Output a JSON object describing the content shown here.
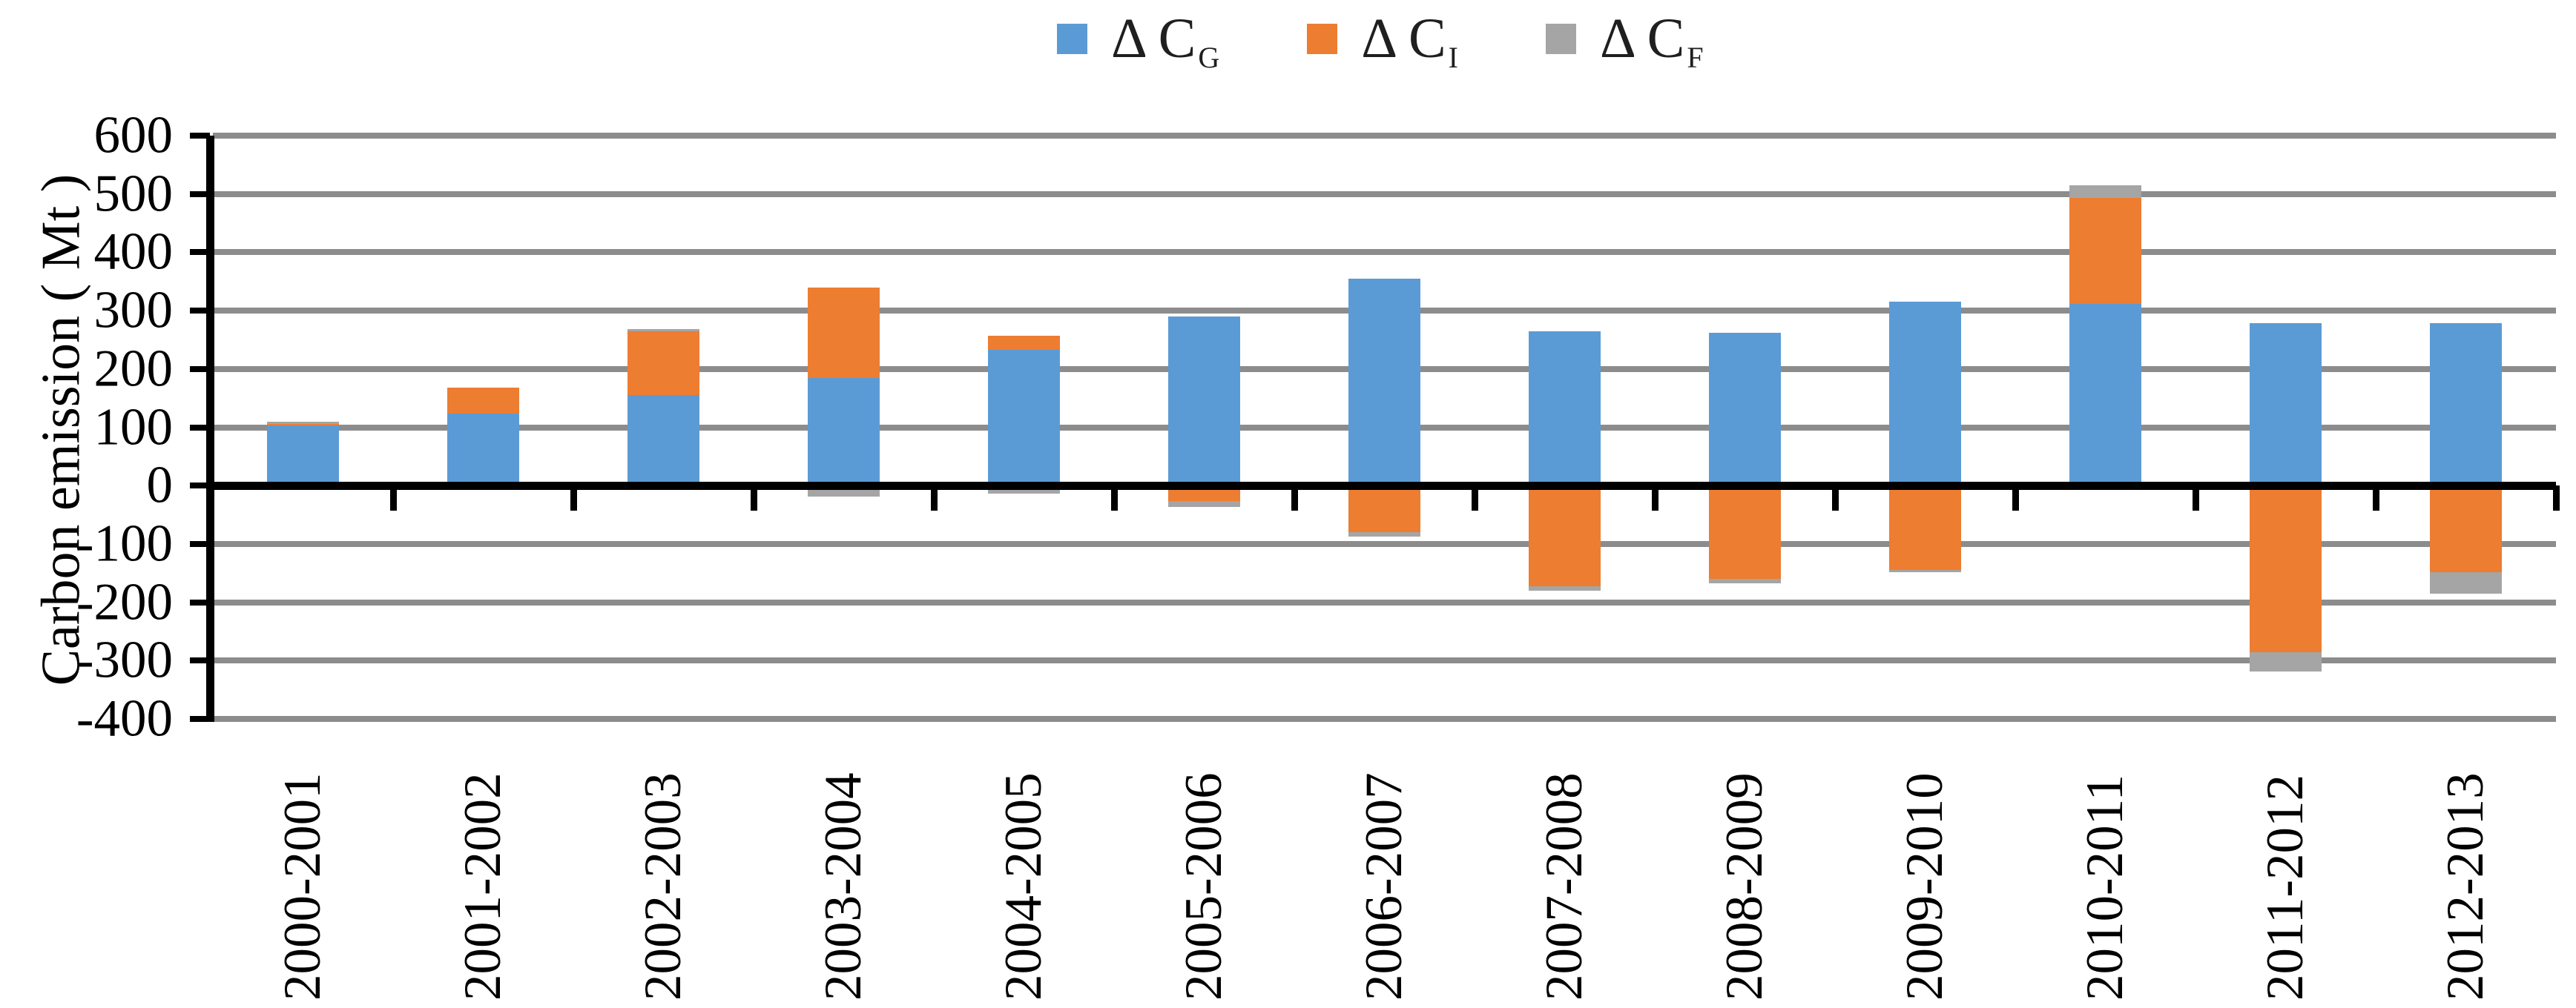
{
  "legend": {
    "items": [
      {
        "base": "Δ C",
        "sub": "G"
      },
      {
        "base": "Δ C",
        "sub": "I"
      },
      {
        "base": "Δ C",
        "sub": "F"
      }
    ]
  },
  "chart_data": {
    "type": "bar",
    "stacked": true,
    "title": "",
    "xlabel": "",
    "ylabel": "Carbon emission ( Mt )",
    "ylim": [
      -400,
      600
    ],
    "ytick_step": 100,
    "yticks": [
      600,
      500,
      400,
      300,
      200,
      100,
      0,
      -100,
      -200,
      -300,
      -400
    ],
    "grid": "horizontal",
    "legend_position": "top-center",
    "categories": [
      "2000-2001",
      "2001-2002",
      "2002-2003",
      "2003-2004",
      "2004-2005",
      "2005-2006",
      "2006-2007",
      "2007-2008",
      "2008-2009",
      "2009-2010",
      "2010-2011",
      "2011-2012",
      "2012-2013"
    ],
    "series": [
      {
        "name": "Δ C_G",
        "color": "#5b9bd5",
        "values": [
          96,
          117,
          148,
          178,
          226,
          283,
          348,
          258,
          255,
          309,
          305,
          272,
          271
        ]
      },
      {
        "name": "Δ C_I",
        "color": "#ed7d31",
        "values": [
          3,
          44,
          110,
          155,
          24,
          -20,
          -73,
          -165,
          -153,
          -137,
          181,
          -279,
          -141
        ]
      },
      {
        "name": "Δ C_F",
        "color": "#a5a5a5",
        "values": [
          3,
          0,
          3,
          -12,
          -7,
          -10,
          -8,
          -8,
          -8,
          -5,
          22,
          -33,
          -37
        ]
      }
    ],
    "colors": {
      "cg_blue": "#5b9bd5",
      "ci_orange": "#ed7d31",
      "cf_gray": "#a5a5a5",
      "gridline": "#8c8c8c",
      "axis": "#000000"
    }
  }
}
